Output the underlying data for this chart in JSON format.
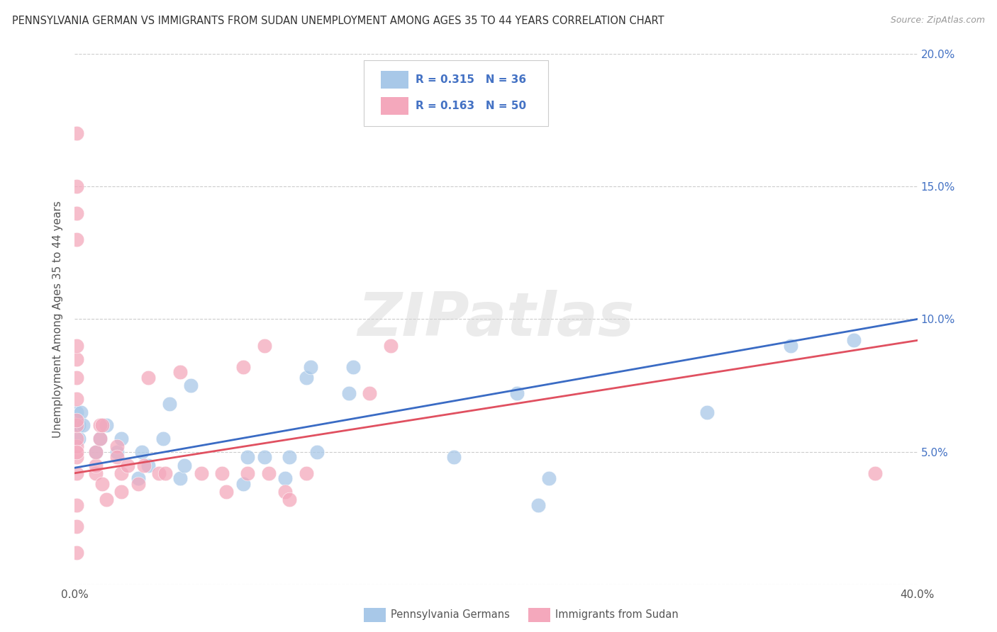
{
  "title": "PENNSYLVANIA GERMAN VS IMMIGRANTS FROM SUDAN UNEMPLOYMENT AMONG AGES 35 TO 44 YEARS CORRELATION CHART",
  "source": "Source: ZipAtlas.com",
  "ylabel": "Unemployment Among Ages 35 to 44 years",
  "xlim": [
    0,
    0.4
  ],
  "ylim": [
    0,
    0.2
  ],
  "xticks": [
    0.0,
    0.05,
    0.1,
    0.15,
    0.2,
    0.25,
    0.3,
    0.35,
    0.4
  ],
  "xticklabels": [
    "0.0%",
    "",
    "",
    "",
    "",
    "",
    "",
    "",
    "40.0%"
  ],
  "yticks": [
    0.0,
    0.05,
    0.1,
    0.15,
    0.2
  ],
  "yticklabels_right": [
    "",
    "5.0%",
    "10.0%",
    "15.0%",
    "20.0%"
  ],
  "blue_R": 0.315,
  "blue_N": 36,
  "pink_R": 0.163,
  "pink_N": 50,
  "blue_color": "#A8C8E8",
  "pink_color": "#F4A8BC",
  "blue_line_color": "#3A6BC4",
  "pink_line_color": "#E05060",
  "watermark": "ZIPatlas",
  "blue_points_x": [
    0.001,
    0.001,
    0.002,
    0.002,
    0.003,
    0.004,
    0.01,
    0.012,
    0.015,
    0.02,
    0.022,
    0.03,
    0.032,
    0.035,
    0.042,
    0.045,
    0.05,
    0.052,
    0.055,
    0.08,
    0.082,
    0.09,
    0.1,
    0.102,
    0.11,
    0.112,
    0.115,
    0.13,
    0.132,
    0.18,
    0.21,
    0.22,
    0.225,
    0.3,
    0.34,
    0.37
  ],
  "blue_points_y": [
    0.06,
    0.065,
    0.055,
    0.06,
    0.065,
    0.06,
    0.05,
    0.055,
    0.06,
    0.05,
    0.055,
    0.04,
    0.05,
    0.045,
    0.055,
    0.068,
    0.04,
    0.045,
    0.075,
    0.038,
    0.048,
    0.048,
    0.04,
    0.048,
    0.078,
    0.082,
    0.05,
    0.072,
    0.082,
    0.048,
    0.072,
    0.03,
    0.04,
    0.065,
    0.09,
    0.092
  ],
  "pink_points_x": [
    0.001,
    0.001,
    0.001,
    0.001,
    0.001,
    0.001,
    0.001,
    0.001,
    0.001,
    0.001,
    0.001,
    0.001,
    0.001,
    0.001,
    0.001,
    0.001,
    0.001,
    0.001,
    0.01,
    0.01,
    0.01,
    0.012,
    0.012,
    0.013,
    0.013,
    0.015,
    0.02,
    0.02,
    0.022,
    0.022,
    0.025,
    0.03,
    0.033,
    0.035,
    0.04,
    0.043,
    0.05,
    0.06,
    0.07,
    0.072,
    0.08,
    0.082,
    0.09,
    0.092,
    0.1,
    0.102,
    0.11,
    0.14,
    0.15,
    0.38
  ],
  "pink_points_y": [
    0.042,
    0.048,
    0.052,
    0.055,
    0.06,
    0.062,
    0.07,
    0.078,
    0.085,
    0.09,
    0.13,
    0.14,
    0.15,
    0.17,
    0.03,
    0.022,
    0.012,
    0.05,
    0.042,
    0.045,
    0.05,
    0.055,
    0.06,
    0.038,
    0.06,
    0.032,
    0.052,
    0.048,
    0.042,
    0.035,
    0.045,
    0.038,
    0.045,
    0.078,
    0.042,
    0.042,
    0.08,
    0.042,
    0.042,
    0.035,
    0.082,
    0.042,
    0.09,
    0.042,
    0.035,
    0.032,
    0.042,
    0.072,
    0.09,
    0.042
  ],
  "blue_trend_y_start": 0.044,
  "blue_trend_y_end": 0.1,
  "pink_trend_y_start": 0.042,
  "pink_trend_y_end": 0.092
}
